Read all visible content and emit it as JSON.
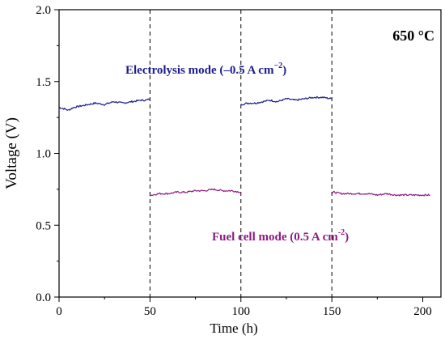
{
  "chart_data": {
    "type": "line",
    "xlabel": "Time (h)",
    "ylabel": "Voltage (V)",
    "xlim": [
      0,
      210
    ],
    "ylim": [
      0.0,
      2.0
    ],
    "x_ticks": [
      0,
      50,
      100,
      150,
      200
    ],
    "y_ticks": [
      0.0,
      0.5,
      1.0,
      1.5,
      2.0
    ],
    "x_tick_labels": [
      "0",
      "50",
      "100",
      "150",
      "200"
    ],
    "y_tick_labels": [
      "0.0",
      "0.5",
      "1.0",
      "1.5",
      "2.0"
    ],
    "grid": false,
    "mode_switch_times": [
      50,
      100,
      150
    ],
    "temperature_label": "650 °C",
    "annotations": {
      "electrolysis": {
        "prefix": "Electrolysis mode (–0.5 A cm",
        "sup": "−2",
        "suffix": ")",
        "color": "#1c1c8c"
      },
      "fuel_cell": {
        "prefix": "Fuel cell mode (0.5 A cm",
        "sup": "-2",
        "suffix": ")",
        "color": "#8c1a82"
      }
    },
    "series": [
      {
        "color": "#1c1c8c",
        "segments": [
          {
            "x": [
              0,
              3,
              5,
              8,
              12,
              16,
              20,
              25,
              30,
              35,
              40,
              45,
              48,
              50
            ],
            "y": [
              1.32,
              1.31,
              1.3,
              1.32,
              1.33,
              1.34,
              1.35,
              1.34,
              1.36,
              1.35,
              1.36,
              1.37,
              1.37,
              1.38
            ]
          },
          {
            "x": [
              100,
              104,
              108,
              112,
              116,
              120,
              125,
              130,
              135,
              140,
              145,
              150
            ],
            "y": [
              1.34,
              1.35,
              1.35,
              1.36,
              1.37,
              1.36,
              1.38,
              1.37,
              1.38,
              1.39,
              1.39,
              1.38
            ]
          }
        ]
      },
      {
        "color": "#8c1a82",
        "segments": [
          {
            "x": [
              50,
              51,
              55,
              60,
              65,
              70,
              75,
              80,
              85,
              90,
              95,
              100
            ],
            "y": [
              0.71,
              0.71,
              0.72,
              0.72,
              0.73,
              0.73,
              0.74,
              0.74,
              0.75,
              0.74,
              0.74,
              0.73
            ]
          },
          {
            "x": [
              150,
              151,
              155,
              160,
              165,
              170,
              175,
              180,
              185,
              190,
              195,
              200,
              204
            ],
            "y": [
              0.72,
              0.73,
              0.72,
              0.72,
              0.72,
              0.72,
              0.71,
              0.72,
              0.71,
              0.71,
              0.71,
              0.71,
              0.71
            ]
          }
        ]
      }
    ]
  }
}
